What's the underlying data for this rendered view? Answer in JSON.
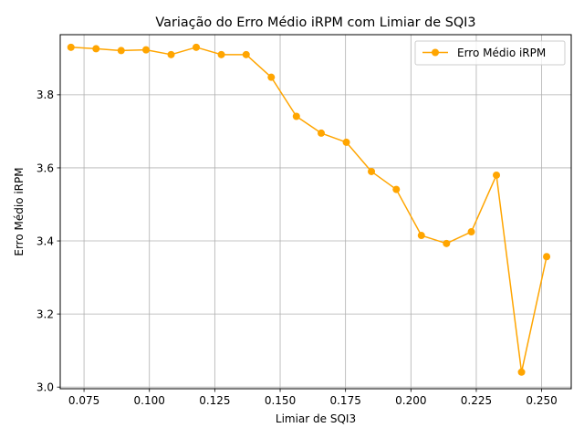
{
  "chart_data": {
    "type": "line",
    "title": "Variação do Erro Médio iRPM com Limiar de SQI3",
    "xlabel": "Limiar de SQI3",
    "ylabel": "Erro Médio iRPM",
    "xlim": [
      0.0659,
      0.2613
    ],
    "ylim": [
      2.9955,
      3.9645
    ],
    "grid": true,
    "legend_position": "top-right",
    "x_ticks": [
      "0.075",
      "0.100",
      "0.125",
      "0.150",
      "0.175",
      "0.200",
      "0.225",
      "0.250"
    ],
    "x_tick_values": [
      0.075,
      0.1,
      0.125,
      0.15,
      0.175,
      0.2,
      0.225,
      0.25
    ],
    "y_ticks": [
      "3.0",
      "3.2",
      "3.4",
      "3.6",
      "3.8"
    ],
    "y_tick_values": [
      3.0,
      3.2,
      3.4,
      3.6,
      3.8
    ],
    "series": [
      {
        "name": "Erro Médio iRPM",
        "color": "#ffa500",
        "x": [
          0.07,
          0.0796,
          0.0892,
          0.0987,
          0.1083,
          0.1179,
          0.1275,
          0.137,
          0.1466,
          0.1562,
          0.1657,
          0.1753,
          0.1849,
          0.1944,
          0.204,
          0.2136,
          0.2231,
          0.2327,
          0.2423,
          0.2519
        ],
        "y": [
          3.93,
          3.926,
          3.921,
          3.923,
          3.91,
          3.93,
          3.91,
          3.91,
          3.848,
          3.741,
          3.695,
          3.67,
          3.59,
          3.541,
          3.415,
          3.393,
          3.425,
          3.58,
          3.041,
          3.357
        ]
      }
    ]
  }
}
